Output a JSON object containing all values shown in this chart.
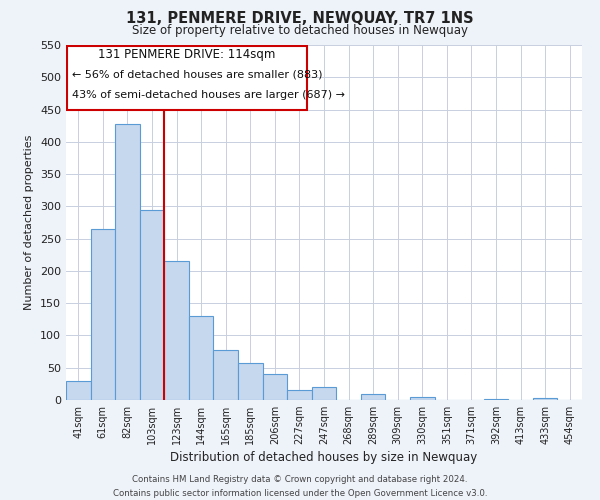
{
  "title": "131, PENMERE DRIVE, NEWQUAY, TR7 1NS",
  "subtitle": "Size of property relative to detached houses in Newquay",
  "xlabel": "Distribution of detached houses by size in Newquay",
  "ylabel": "Number of detached properties",
  "bar_labels": [
    "41sqm",
    "61sqm",
    "82sqm",
    "103sqm",
    "123sqm",
    "144sqm",
    "165sqm",
    "185sqm",
    "206sqm",
    "227sqm",
    "247sqm",
    "268sqm",
    "289sqm",
    "309sqm",
    "330sqm",
    "351sqm",
    "371sqm",
    "392sqm",
    "413sqm",
    "433sqm",
    "454sqm"
  ],
  "bar_values": [
    30,
    265,
    428,
    295,
    215,
    130,
    78,
    58,
    40,
    15,
    20,
    0,
    10,
    0,
    5,
    0,
    0,
    2,
    0,
    3,
    0
  ],
  "bar_color": "#c5d8ee",
  "bar_edge_color": "#5b9bd5",
  "vline_x_index": 3,
  "vline_color": "#cc0000",
  "ylim": [
    0,
    550
  ],
  "yticks": [
    0,
    50,
    100,
    150,
    200,
    250,
    300,
    350,
    400,
    450,
    500,
    550
  ],
  "annotation_title": "131 PENMERE DRIVE: 114sqm",
  "annotation_line1": "← 56% of detached houses are smaller (883)",
  "annotation_line2": "43% of semi-detached houses are larger (687) →",
  "footer_line1": "Contains HM Land Registry data © Crown copyright and database right 2024.",
  "footer_line2": "Contains public sector information licensed under the Open Government Licence v3.0.",
  "background_color": "#eef2f9",
  "plot_bg_color": "#ffffff",
  "grid_color": "#c8d0e0"
}
